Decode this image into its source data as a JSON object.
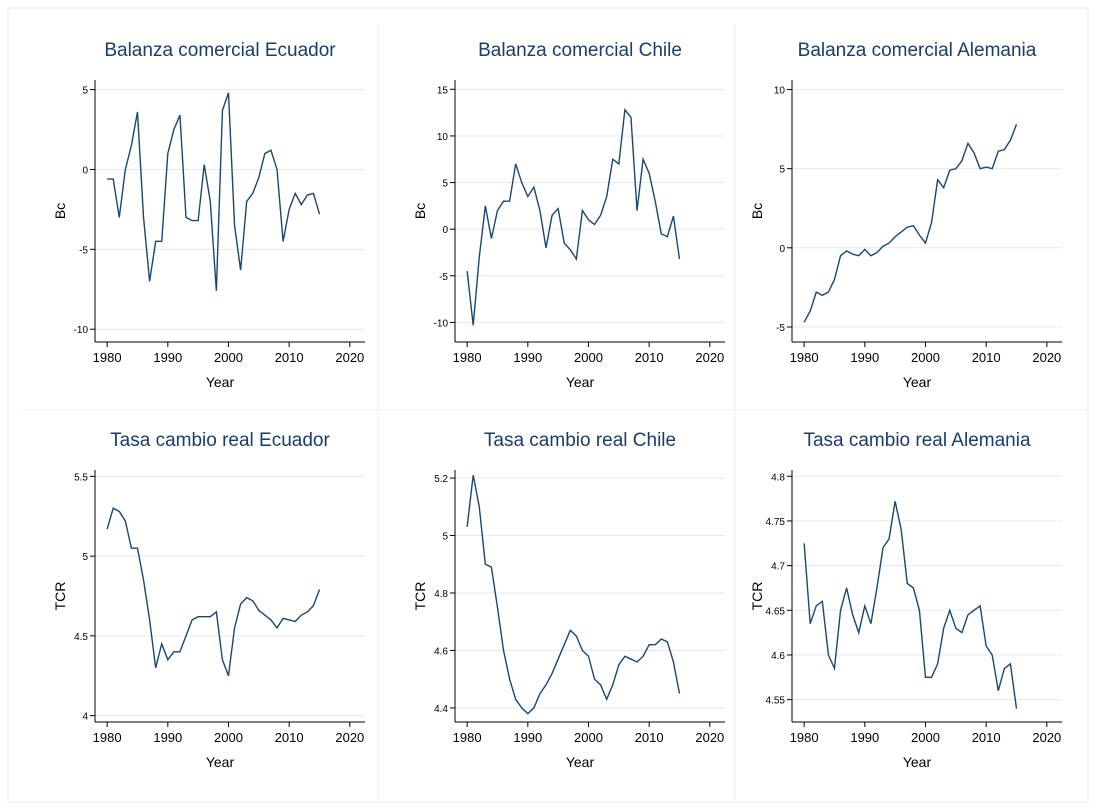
{
  "chart_data": [
    {
      "type": "line",
      "title": "Balanza comercial Ecuador",
      "x_label": "Year",
      "y_label": "Bc",
      "color": "#1a476f",
      "grid": true,
      "x": [
        1980,
        1981,
        1982,
        1983,
        1984,
        1985,
        1986,
        1987,
        1988,
        1989,
        1990,
        1991,
        1992,
        1993,
        1994,
        1995,
        1996,
        1997,
        1998,
        1999,
        2000,
        2001,
        2002,
        2003,
        2004,
        2005,
        2006,
        2007,
        2008,
        2009,
        2010,
        2011,
        2012,
        2013,
        2014,
        2015
      ],
      "values": [
        -0.6,
        -0.6,
        -3,
        0,
        1.5,
        3.6,
        -3,
        -7,
        -4.5,
        -4.5,
        1,
        2.5,
        3.4,
        -3,
        -3.2,
        -3.2,
        0.3,
        -2,
        -7.6,
        3.7,
        4.8,
        -3.5,
        -6.3,
        -2,
        -1.5,
        -0.5,
        1,
        1.2,
        0,
        -4.5,
        -2.5,
        -1.5,
        -2.2,
        -1.6,
        -1.5,
        -2.8
      ],
      "xlim": [
        1978,
        2022.5
      ],
      "ylim": [
        -10.8,
        5.6
      ],
      "xticks": [
        1980,
        1990,
        2000,
        2010,
        2020
      ],
      "yticks": [
        -10,
        -5,
        0,
        5
      ]
    },
    {
      "type": "line",
      "title": "Balanza comercial Chile",
      "x_label": "Year",
      "y_label": "Bc",
      "color": "#1a476f",
      "grid": true,
      "x": [
        1980,
        1981,
        1982,
        1983,
        1984,
        1985,
        1986,
        1987,
        1988,
        1989,
        1990,
        1991,
        1992,
        1993,
        1994,
        1995,
        1996,
        1997,
        1998,
        1999,
        2000,
        2001,
        2002,
        2003,
        2004,
        2005,
        2006,
        2007,
        2008,
        2009,
        2010,
        2011,
        2012,
        2013,
        2014,
        2015
      ],
      "values": [
        -4.5,
        -10.3,
        -3,
        2.5,
        -1,
        2,
        3,
        3,
        7,
        5,
        3.5,
        4.5,
        2,
        -2,
        1.5,
        2.2,
        -1.5,
        -2.2,
        -3.2,
        2,
        1,
        0.5,
        1.5,
        3.5,
        7.5,
        7,
        12.8,
        12,
        2,
        7.5,
        6,
        3,
        -0.5,
        -0.8,
        1.4,
        -3.2
      ],
      "xlim": [
        1978,
        2022.5
      ],
      "ylim": [
        -12.1,
        16
      ],
      "xticks": [
        1980,
        1990,
        2000,
        2010,
        2020
      ],
      "yticks": [
        -10,
        -5,
        0,
        5,
        10,
        15
      ]
    },
    {
      "type": "line",
      "title": "Balanza comercial Alemania",
      "x_label": "Year",
      "y_label": "Bc",
      "color": "#1a476f",
      "grid": true,
      "x": [
        1980,
        1981,
        1982,
        1983,
        1984,
        1985,
        1986,
        1987,
        1988,
        1989,
        1990,
        1991,
        1992,
        1993,
        1994,
        1995,
        1996,
        1997,
        1998,
        1999,
        2000,
        2001,
        2002,
        2003,
        2004,
        2005,
        2006,
        2007,
        2008,
        2009,
        2010,
        2011,
        2012,
        2013,
        2014,
        2015
      ],
      "values": [
        -4.7,
        -4,
        -2.8,
        -3,
        -2.8,
        -2,
        -0.5,
        -0.2,
        -0.4,
        -0.5,
        -0.1,
        -0.5,
        -0.3,
        0.1,
        0.3,
        0.7,
        1,
        1.3,
        1.4,
        0.8,
        0.3,
        1.6,
        4.3,
        3.8,
        4.9,
        5,
        5.5,
        6.6,
        6,
        5,
        5.1,
        5,
        6.1,
        6.2,
        6.8,
        7.8
      ],
      "xlim": [
        1978,
        2022.5
      ],
      "ylim": [
        -5.95,
        10.6
      ],
      "xticks": [
        1980,
        1990,
        2000,
        2010,
        2020
      ],
      "yticks": [
        -5,
        0,
        5,
        10
      ]
    },
    {
      "type": "line",
      "title": "Tasa cambio real Ecuador",
      "x_label": "Year",
      "y_label": "TCR",
      "color": "#1a476f",
      "grid": true,
      "x": [
        1980,
        1981,
        1982,
        1983,
        1984,
        1985,
        1986,
        1987,
        1988,
        1989,
        1990,
        1991,
        1992,
        1993,
        1994,
        1995,
        1996,
        1997,
        1998,
        1999,
        2000,
        2001,
        2002,
        2003,
        2004,
        2005,
        2006,
        2007,
        2008,
        2009,
        2010,
        2011,
        2012,
        2013,
        2014,
        2015
      ],
      "values": [
        5.17,
        5.3,
        5.28,
        5.22,
        5.05,
        5.05,
        4.85,
        4.6,
        4.3,
        4.45,
        4.35,
        4.4,
        4.4,
        4.5,
        4.6,
        4.62,
        4.62,
        4.62,
        4.65,
        4.35,
        4.25,
        4.55,
        4.7,
        4.74,
        4.72,
        4.66,
        4.63,
        4.6,
        4.55,
        4.61,
        4.6,
        4.59,
        4.63,
        4.65,
        4.69,
        4.79
      ],
      "xlim": [
        1978,
        2022.5
      ],
      "ylim": [
        3.96,
        5.54
      ],
      "xticks": [
        1980,
        1990,
        2000,
        2010,
        2020
      ],
      "yticks": [
        4,
        4.5,
        5,
        5.5
      ]
    },
    {
      "type": "line",
      "title": "Tasa cambio real Chile",
      "x_label": "Year",
      "y_label": "TCR",
      "color": "#1a476f",
      "grid": true,
      "x": [
        1980,
        1981,
        1982,
        1983,
        1984,
        1985,
        1986,
        1987,
        1988,
        1989,
        1990,
        1991,
        1992,
        1993,
        1994,
        1995,
        1996,
        1997,
        1998,
        1999,
        2000,
        2001,
        2002,
        2003,
        2004,
        2005,
        2006,
        2007,
        2008,
        2009,
        2010,
        2011,
        2012,
        2013,
        2014,
        2015
      ],
      "values": [
        5.03,
        5.21,
        5.1,
        4.9,
        4.89,
        4.75,
        4.6,
        4.5,
        4.43,
        4.4,
        4.38,
        4.4,
        4.45,
        4.48,
        4.52,
        4.57,
        4.62,
        4.67,
        4.65,
        4.6,
        4.58,
        4.5,
        4.48,
        4.43,
        4.48,
        4.55,
        4.58,
        4.57,
        4.56,
        4.58,
        4.62,
        4.62,
        4.64,
        4.63,
        4.56,
        4.45
      ],
      "xlim": [
        1978,
        2022.5
      ],
      "ylim": [
        4.351,
        5.228
      ],
      "xticks": [
        1980,
        1990,
        2000,
        2010,
        2020
      ],
      "yticks": [
        4.4,
        4.6,
        4.8,
        5,
        5.2
      ]
    },
    {
      "type": "line",
      "title": "Tasa cambio real Alemania",
      "x_label": "Year",
      "y_label": "TCR",
      "color": "#1a476f",
      "grid": true,
      "x": [
        1980,
        1981,
        1982,
        1983,
        1984,
        1985,
        1986,
        1987,
        1988,
        1989,
        1990,
        1991,
        1992,
        1993,
        1994,
        1995,
        1996,
        1997,
        1998,
        1999,
        2000,
        2001,
        2002,
        2003,
        2004,
        2005,
        2006,
        2007,
        2008,
        2009,
        2010,
        2011,
        2012,
        2013,
        2014,
        2015
      ],
      "values": [
        4.725,
        4.635,
        4.655,
        4.66,
        4.6,
        4.585,
        4.65,
        4.675,
        4.645,
        4.625,
        4.655,
        4.635,
        4.675,
        4.72,
        4.73,
        4.772,
        4.74,
        4.68,
        4.675,
        4.65,
        4.575,
        4.575,
        4.59,
        4.63,
        4.65,
        4.63,
        4.625,
        4.645,
        4.65,
        4.655,
        4.61,
        4.6,
        4.56,
        4.585,
        4.59,
        4.54
      ],
      "xlim": [
        1978,
        2022.5
      ],
      "ylim": [
        4.525,
        4.807
      ],
      "xticks": [
        1980,
        1990,
        2000,
        2010,
        2020
      ],
      "yticks": [
        4.55,
        4.6,
        4.65,
        4.7,
        4.75,
        4.8
      ]
    }
  ]
}
